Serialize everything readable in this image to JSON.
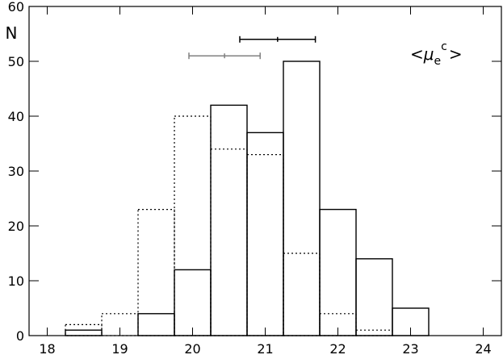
{
  "chart_data": {
    "type": "histogram",
    "ylabel": "N",
    "annotation": {
      "open": "<",
      "base": "μ",
      "sub": "e",
      "sup": "c",
      "close": ">"
    },
    "bins": [
      18.25,
      18.75,
      19.25,
      19.75,
      20.25,
      20.75,
      21.25,
      21.75,
      22.25,
      22.75,
      23.25
    ],
    "series": [
      {
        "style": "solid",
        "color": "#000000",
        "values": [
          1,
          0,
          4,
          12,
          42,
          37,
          50,
          23,
          14,
          5
        ]
      },
      {
        "style": "dotted",
        "color": "#000000",
        "values": [
          2,
          4,
          23,
          40,
          34,
          33,
          15,
          4,
          1,
          0
        ]
      }
    ],
    "errorbars": [
      {
        "x": 21.17,
        "xerr": 0.52,
        "y": 54,
        "color": "#000000"
      },
      {
        "x": 20.44,
        "xerr": 0.49,
        "y": 51,
        "color": "#808080"
      }
    ],
    "xlim": [
      17.75,
      24.25
    ],
    "xticks": [
      18,
      19,
      20,
      21,
      22,
      23,
      24
    ],
    "ylim": [
      0,
      60
    ],
    "yticks": [
      0,
      10,
      20,
      30,
      40,
      50,
      60
    ]
  }
}
